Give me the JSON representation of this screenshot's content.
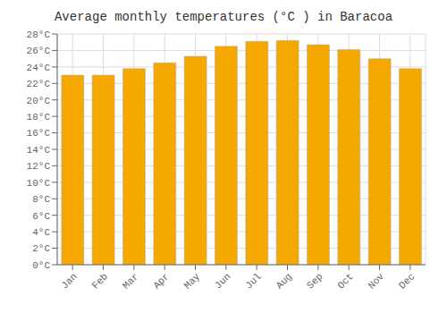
{
  "chart_data": {
    "type": "bar",
    "title": "Average monthly temperatures (°C ) in Baracoa",
    "categories": [
      "Jan",
      "Feb",
      "Mar",
      "Apr",
      "May",
      "Jun",
      "Jul",
      "Aug",
      "Sep",
      "Oct",
      "Nov",
      "Dec"
    ],
    "values": [
      23.0,
      23.0,
      23.8,
      24.5,
      25.3,
      26.5,
      27.1,
      27.2,
      26.7,
      26.1,
      25.0,
      23.8
    ],
    "color": "#F5A800",
    "ylim": [
      0,
      28
    ],
    "yticks": [
      {
        "value": 0,
        "label": "0°C"
      },
      {
        "value": 2,
        "label": "2°C"
      },
      {
        "value": 4,
        "label": "4°C"
      },
      {
        "value": 6,
        "label": "6°C"
      },
      {
        "value": 8,
        "label": "8°C"
      },
      {
        "value": 10,
        "label": "10°C"
      },
      {
        "value": 12,
        "label": "12°C"
      },
      {
        "value": 14,
        "label": "14°C"
      },
      {
        "value": 16,
        "label": "16°C"
      },
      {
        "value": 18,
        "label": "18°C"
      },
      {
        "value": 20,
        "label": "20°C"
      },
      {
        "value": 22,
        "label": "22°C"
      },
      {
        "value": 24,
        "label": "24°C"
      },
      {
        "value": 26,
        "label": "26°C"
      },
      {
        "value": 28,
        "label": "28°C"
      }
    ],
    "grid": true
  }
}
